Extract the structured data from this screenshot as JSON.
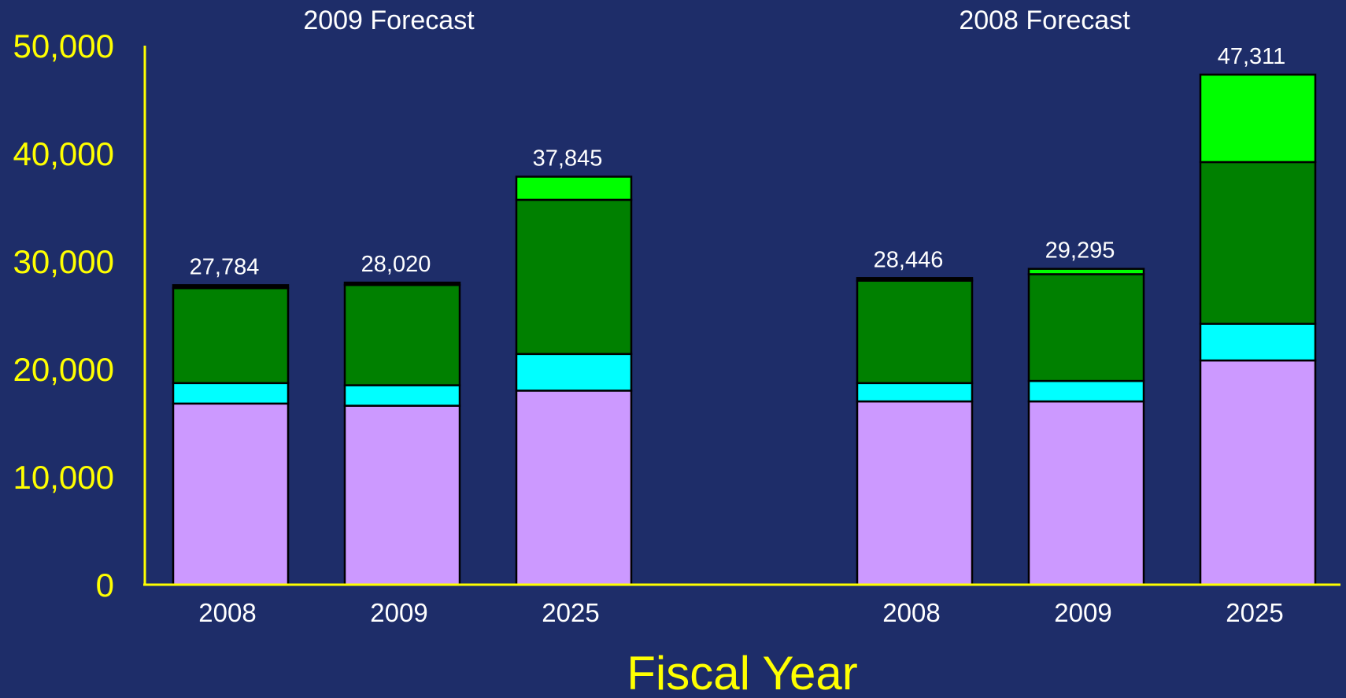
{
  "chart_data": {
    "type": "bar",
    "stacked": true,
    "xlabel": "Fiscal Year",
    "ylabel": "",
    "ylim": [
      0,
      50000
    ],
    "yticks": [
      "0",
      "10,000",
      "20,000",
      "30,000",
      "40,000",
      "50,000"
    ],
    "grid": false,
    "legend": "none",
    "axis_color": "#ffff00",
    "segment_colors": [
      "#cc99ff",
      "#00ffff",
      "#008000",
      "#00ff00",
      "#000000"
    ],
    "groups": [
      {
        "title": "2009 Forecast",
        "bars": [
          {
            "category": "2008",
            "total_label": "27,784",
            "segments": [
              16800,
              1900,
              8800,
              0,
              284
            ]
          },
          {
            "category": "2009",
            "total_label": "28,020",
            "segments": [
              16600,
              1900,
              9300,
              0,
              220
            ]
          },
          {
            "category": "2025",
            "total_label": "37,845",
            "segments": [
              18000,
              3400,
              14300,
              2145,
              0
            ]
          }
        ]
      },
      {
        "title": "2008 Forecast",
        "bars": [
          {
            "category": "2008",
            "total_label": "28,446",
            "segments": [
              17000,
              1700,
              9500,
              0,
              246
            ]
          },
          {
            "category": "2009",
            "total_label": "29,295",
            "segments": [
              17000,
              1900,
              9900,
              495,
              0
            ]
          },
          {
            "category": "2025",
            "total_label": "47,311",
            "segments": [
              20800,
              3400,
              15000,
              8111,
              0
            ]
          }
        ]
      }
    ]
  }
}
